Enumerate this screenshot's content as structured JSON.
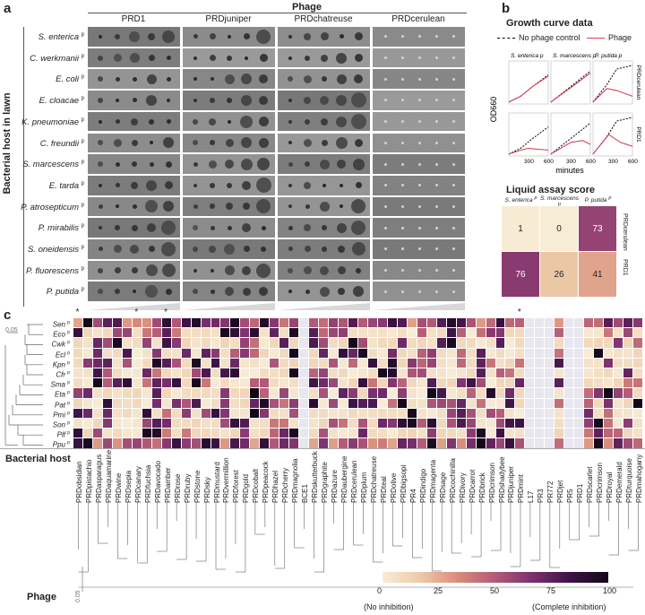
{
  "panel_a": {
    "letter": "a",
    "phage_title": "Phage",
    "y_title": "Bacterial host in lawn",
    "phages": [
      "PRD1",
      "PRDjuniper",
      "PRDchatreuse",
      "PRDcerulean"
    ],
    "hosts": [
      {
        "name": "S. enterica",
        "sup": "p"
      },
      {
        "name": "C. werkmanii",
        "sup": "p"
      },
      {
        "name": "E. coli",
        "sup": "p"
      },
      {
        "name": "E. cloacae",
        "sup": "p"
      },
      {
        "name": "K. pneumoniae",
        "sup": "p"
      },
      {
        "name": "C. freundii",
        "sup": "p"
      },
      {
        "name": "S. marcescens",
        "sup": "p"
      },
      {
        "name": "E. tarda",
        "sup": "p"
      },
      {
        "name": "P. atrosepticum",
        "sup": "p"
      },
      {
        "name": "P. mirabilis",
        "sup": "p"
      },
      {
        "name": "S. oneidensis",
        "sup": "p"
      },
      {
        "name": "P. fluorescens",
        "sup": "p"
      },
      {
        "name": "P. putida",
        "sup": "p"
      }
    ]
  },
  "panel_b": {
    "letter": "b",
    "growth_title": "Growth curve data",
    "legend_control": "No phage control",
    "legend_phage": "Phage",
    "ylabel": "OD660",
    "xlabel": "minutes",
    "xticks": [
      "300",
      "600"
    ],
    "columns": [
      {
        "name": "S. enterica",
        "sup": "p"
      },
      {
        "name": "S. marcescens",
        "sup": "p"
      },
      {
        "name": "P. putida",
        "sup": "p"
      }
    ],
    "rows": [
      "PRDcerulean",
      "PRD1"
    ],
    "liquid_title": "Liquid assay score",
    "scores": [
      [
        1,
        0,
        73
      ],
      [
        76,
        26,
        41
      ]
    ]
  },
  "panel_c": {
    "letter": "c",
    "scale_top": "0.05",
    "scale_bottom": "0.05",
    "host_title": "Bacterial host",
    "phage_title": "Phage",
    "hosts": [
      {
        "name": "Sen",
        "sup": "p"
      },
      {
        "name": "Eco",
        "sup": "p"
      },
      {
        "name": "Cwk",
        "sup": "p"
      },
      {
        "name": "Ecl",
        "sup": "p"
      },
      {
        "name": "Kpn",
        "sup": "p"
      },
      {
        "name": "Cfr",
        "sup": "p"
      },
      {
        "name": "Sma",
        "sup": "p"
      },
      {
        "name": "Eta",
        "sup": "p"
      },
      {
        "name": "Pat",
        "sup": "p"
      },
      {
        "name": "Pmi",
        "sup": "p"
      },
      {
        "name": "Son",
        "sup": "p"
      },
      {
        "name": "Plf",
        "sup": "p"
      },
      {
        "name": "Ppu",
        "sup": "p"
      }
    ],
    "phages": [
      "PRDobsidian",
      "PRDpistachio",
      "PRDasparagus",
      "PRDaquamarine",
      "PRDwine",
      "PRDsepia",
      "PRDcanary",
      "PRDfuchsia",
      "PRDavocado",
      "PRDamber",
      "PRDrose",
      "PRDruby",
      "PRDstone",
      "PRDsky",
      "PRDmustard",
      "PRDvermillion",
      "PRDforest",
      "PRDgold",
      "PRDcobalt",
      "PRDpeacock",
      "PRDhazel",
      "PRDcherry",
      "PRDmagnolia",
      "BCE1",
      "PRDskutterbuck",
      "PRDgraphite",
      "PRDazure",
      "PRDaubergine",
      "PRDcerulean",
      "PRDplum",
      "PRDchatreuse",
      "PRDteal",
      "PRDolive",
      "PRDbigsopi",
      "PR4",
      "PRDindigo",
      "PRDmagenta",
      "PRDsage",
      "PRDcochinilla",
      "PRDivory",
      "PRDcarrot",
      "PRDbrick",
      "PRDcrimson",
      "PRDshadybee",
      "PRDjuniper",
      "PRDmint",
      "L17",
      "PR3",
      "PR772",
      "PRDjet",
      "PR5",
      "PRD1",
      "PRDscarlet",
      "PRDcrimson",
      "PRDroyal",
      "PRDemerald",
      "PRDturquoise",
      "PRDmahogany"
    ],
    "starred": [
      0,
      6,
      9,
      45
    ],
    "colorbar_ticks": [
      "0",
      "25",
      "50",
      "75",
      "100"
    ],
    "colorbar_low": "(No inhibition)",
    "colorbar_high": "(Complete inhibition)"
  }
}
